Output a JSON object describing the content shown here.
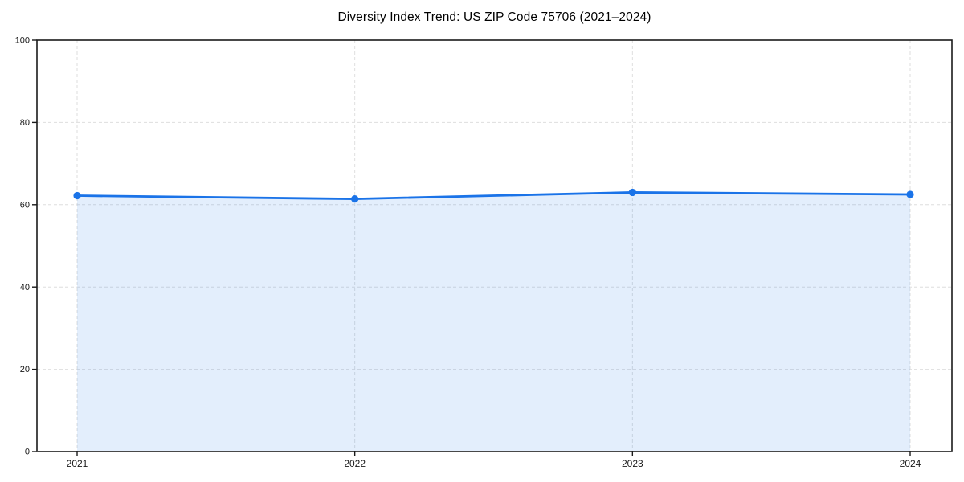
{
  "chart_data": {
    "type": "line",
    "title": "Diversity Index Trend: US ZIP Code 75706 (2021–2024)",
    "categories": [
      "2021",
      "2022",
      "2023",
      "2024"
    ],
    "values": [
      62.2,
      61.4,
      63.0,
      62.5
    ],
    "xlabel": "",
    "ylabel": "",
    "ylim": [
      0,
      100
    ],
    "yticks": [
      0,
      20,
      40,
      60,
      80,
      100
    ],
    "grid": "dashed horizontal and vertical",
    "legend_position": "none",
    "marker": "circle",
    "area_fill": true
  },
  "colors": {
    "line": "#1a73e8",
    "marker": "#1a73e8",
    "fill": "#1a73e8",
    "fill_opacity": 0.12,
    "grid": "#dedede",
    "spine": "#1a1a1a",
    "tick_label": "#1a1a1a",
    "background": "#ffffff"
  }
}
